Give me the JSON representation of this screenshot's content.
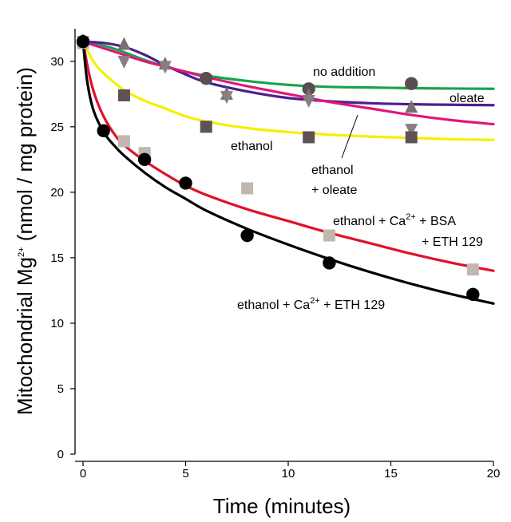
{
  "chart_data": {
    "type": "line",
    "xlabel": "Time (minutes)",
    "ylabel": {
      "prefix": "Mitochondrial Mg",
      "sup": "2+",
      "suffix": " (nmol / mg protein)"
    },
    "xlim": [
      0,
      20
    ],
    "ylim": [
      0,
      32
    ],
    "x_ticks": [
      "0",
      "5",
      "10",
      "15",
      "20"
    ],
    "y_ticks": [
      "0",
      "5",
      "10",
      "15",
      "20",
      "25",
      "30"
    ],
    "grid": false,
    "series": [
      {
        "name": "no addition",
        "color": "#1aa34a",
        "marker": "circle",
        "marker_color": "#5a4e52",
        "curve": [
          [
            0,
            31.5
          ],
          [
            1,
            31.2
          ],
          [
            2,
            30.7
          ],
          [
            3,
            30.1
          ],
          [
            4,
            29.6
          ],
          [
            5,
            29.2
          ],
          [
            6,
            28.9
          ],
          [
            8,
            28.5
          ],
          [
            10,
            28.2
          ],
          [
            12,
            28.05
          ],
          [
            14,
            28.0
          ],
          [
            16,
            27.95
          ],
          [
            18,
            27.92
          ],
          [
            20,
            27.9
          ]
        ],
        "points": [
          [
            0,
            31.5
          ],
          [
            6,
            28.7
          ],
          [
            11,
            27.9
          ],
          [
            16,
            28.3
          ]
        ]
      },
      {
        "name": "oleate",
        "color": "#4b1f8e",
        "marker": "triangle-up",
        "marker_color": "#7a6e70",
        "curve": [
          [
            0,
            31.5
          ],
          [
            1,
            31.4
          ],
          [
            2,
            31.1
          ],
          [
            3,
            30.5
          ],
          [
            4,
            29.7
          ],
          [
            5,
            29.0
          ],
          [
            6,
            28.4
          ],
          [
            8,
            27.7
          ],
          [
            10,
            27.2
          ],
          [
            12,
            26.95
          ],
          [
            14,
            26.8
          ],
          [
            16,
            26.72
          ],
          [
            18,
            26.68
          ],
          [
            20,
            26.65
          ]
        ],
        "points": [
          [
            0,
            31.6
          ],
          [
            2,
            31.3
          ],
          [
            4,
            29.8
          ],
          [
            7,
            27.5
          ],
          [
            11,
            27.4
          ],
          [
            16,
            26.5
          ]
        ]
      },
      {
        "name": "ethanol + oleate",
        "color": "#e0177a",
        "marker": "triangle-down",
        "marker_color": "#8a7e80",
        "curve": [
          [
            0,
            31.5
          ],
          [
            1,
            31.0
          ],
          [
            2,
            30.5
          ],
          [
            3,
            30.0
          ],
          [
            4,
            29.6
          ],
          [
            5,
            29.2
          ],
          [
            6,
            28.8
          ],
          [
            8,
            28.1
          ],
          [
            10,
            27.5
          ],
          [
            12,
            26.9
          ],
          [
            14,
            26.4
          ],
          [
            16,
            25.9
          ],
          [
            18,
            25.5
          ],
          [
            20,
            25.2
          ]
        ],
        "points": [
          [
            0,
            31.5
          ],
          [
            2,
            30.0
          ],
          [
            4,
            29.6
          ],
          [
            7,
            27.3
          ],
          [
            11,
            27.0
          ],
          [
            16,
            24.8
          ]
        ]
      },
      {
        "name": "ethanol",
        "color": "#f5ef00",
        "marker": "square",
        "marker_color": "#5e5255",
        "curve": [
          [
            0,
            31.5
          ],
          [
            0.5,
            30.0
          ],
          [
            1,
            29.1
          ],
          [
            2,
            27.8
          ],
          [
            3,
            27.0
          ],
          [
            4,
            26.4
          ],
          [
            5,
            25.8
          ],
          [
            6,
            25.4
          ],
          [
            8,
            24.9
          ],
          [
            10,
            24.6
          ],
          [
            12,
            24.4
          ],
          [
            14,
            24.25
          ],
          [
            16,
            24.15
          ],
          [
            18,
            24.05
          ],
          [
            20,
            24.0
          ]
        ],
        "points": [
          [
            0,
            31.4
          ],
          [
            2,
            27.4
          ],
          [
            6,
            25.0
          ],
          [
            11,
            24.2
          ],
          [
            16,
            24.2
          ]
        ]
      },
      {
        "name": "ethanol + Ca2+ + BSA + ETH 129",
        "color": "#e0102c",
        "marker": "square",
        "marker_color": "#c2b7b0",
        "curve": [
          [
            0,
            31.5
          ],
          [
            0.3,
            29.0
          ],
          [
            0.6,
            27.3
          ],
          [
            1,
            25.8
          ],
          [
            1.5,
            24.5
          ],
          [
            2,
            23.6
          ],
          [
            3,
            22.4
          ],
          [
            4,
            21.4
          ],
          [
            5,
            20.5
          ],
          [
            6,
            19.8
          ],
          [
            8,
            18.7
          ],
          [
            10,
            17.8
          ],
          [
            12,
            16.9
          ],
          [
            14,
            16.1
          ],
          [
            16,
            15.3
          ],
          [
            18,
            14.6
          ],
          [
            20,
            14.0
          ]
        ],
        "points": [
          [
            0,
            31.4
          ],
          [
            2,
            23.9
          ],
          [
            3,
            23.0
          ],
          [
            8,
            20.3
          ],
          [
            12,
            16.7
          ],
          [
            19,
            14.1
          ]
        ]
      },
      {
        "name": "ethanol + Ca2+ + ETH 129",
        "color": "#000000",
        "marker": "circle",
        "marker_color": "#000000",
        "curve": [
          [
            0,
            31.5
          ],
          [
            0.2,
            28.5
          ],
          [
            0.5,
            26.3
          ],
          [
            1,
            24.6
          ],
          [
            1.5,
            23.6
          ],
          [
            2,
            22.8
          ],
          [
            3,
            21.5
          ],
          [
            4,
            20.4
          ],
          [
            5,
            19.5
          ],
          [
            6,
            18.6
          ],
          [
            8,
            17.2
          ],
          [
            10,
            16.0
          ],
          [
            12,
            14.9
          ],
          [
            14,
            13.9
          ],
          [
            16,
            13.0
          ],
          [
            18,
            12.2
          ],
          [
            20,
            11.5
          ]
        ],
        "points": [
          [
            0,
            31.5
          ],
          [
            1,
            24.7
          ],
          [
            3,
            22.5
          ],
          [
            5,
            20.7
          ],
          [
            8,
            16.7
          ],
          [
            12,
            14.6
          ],
          [
            19,
            12.2
          ]
        ]
      }
    ],
    "annotations": {
      "no_addition": "no addition",
      "oleate": "oleate",
      "ethanol": "ethanol",
      "ethanol_oleate_1": "ethanol",
      "ethanol_oleate_2": "+ oleate",
      "bsa_line1_prefix": "ethanol + Ca",
      "bsa_line1_sup": "2+",
      "bsa_line1_suffix": " + BSA",
      "bsa_line2": "+ ETH 129",
      "eth_prefix": "ethanol + Ca",
      "eth_sup": "2+",
      "eth_suffix": " + ETH 129"
    }
  }
}
